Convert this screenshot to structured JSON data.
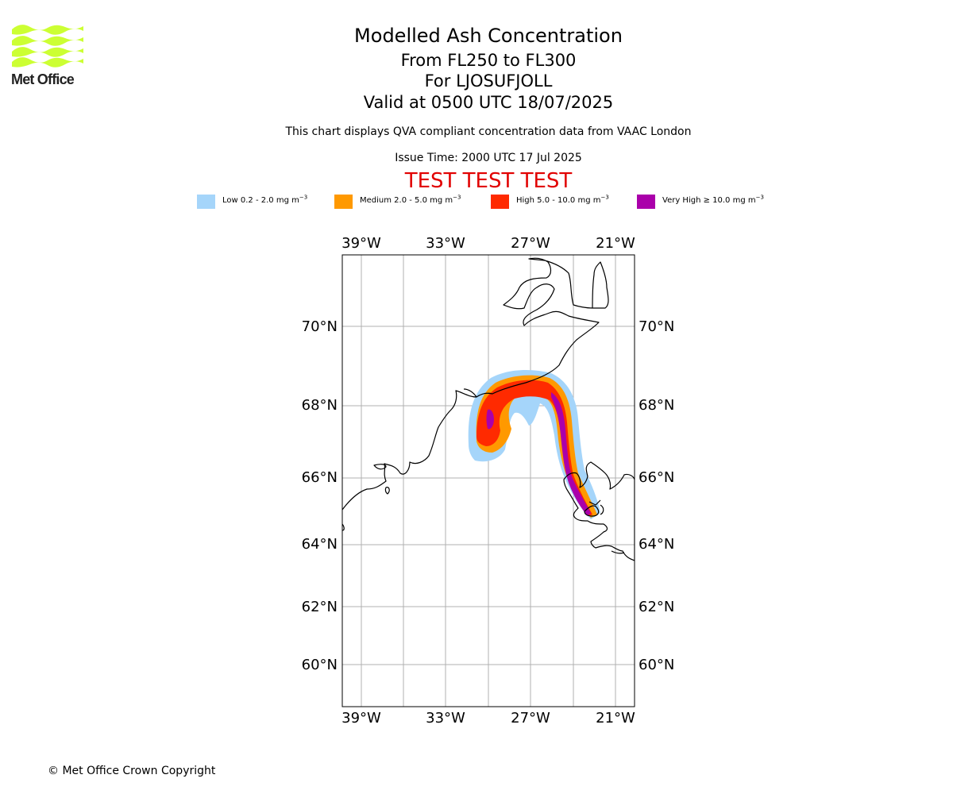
{
  "brand": {
    "name": "Met Office",
    "logo_icon": "met-office-wave-logo-icon",
    "logo_color": "#ccff33"
  },
  "header": {
    "title": "Modelled Ash Concentration",
    "levels": "From FL250 to FL300",
    "volcano": "For LJOSUFJOLL",
    "valid": "Valid at 0500 UTC 18/07/2025",
    "description": "This chart displays QVA compliant concentration data from VAAC London",
    "issue_time": "Issue Time: 2000 UTC 17 Jul 2025",
    "test_banner": "TEST TEST TEST"
  },
  "legend": [
    {
      "label": "Low 0.2 - 2.0 mg m",
      "unit_exp": "−3",
      "color": "#a5d5fa"
    },
    {
      "label": "Medium 2.0 - 5.0 mg m",
      "unit_exp": "−3",
      "color": "#ff9900"
    },
    {
      "label": "High 5.0 - 10.0 mg m",
      "unit_exp": "−3",
      "color": "#ff2a00"
    },
    {
      "label": "Very High  ≥  10.0 mg m",
      "unit_exp": "−3",
      "color": "#aa00aa"
    }
  ],
  "map": {
    "lon_ticks": [
      "39°W",
      "33°W",
      "27°W",
      "21°W"
    ],
    "lat_ticks": [
      "70°N",
      "68°N",
      "66°N",
      "64°N",
      "62°N",
      "60°N"
    ],
    "grid_color": "#b0b0b0"
  },
  "footer": {
    "copyright": "© Met Office Crown Copyright"
  }
}
